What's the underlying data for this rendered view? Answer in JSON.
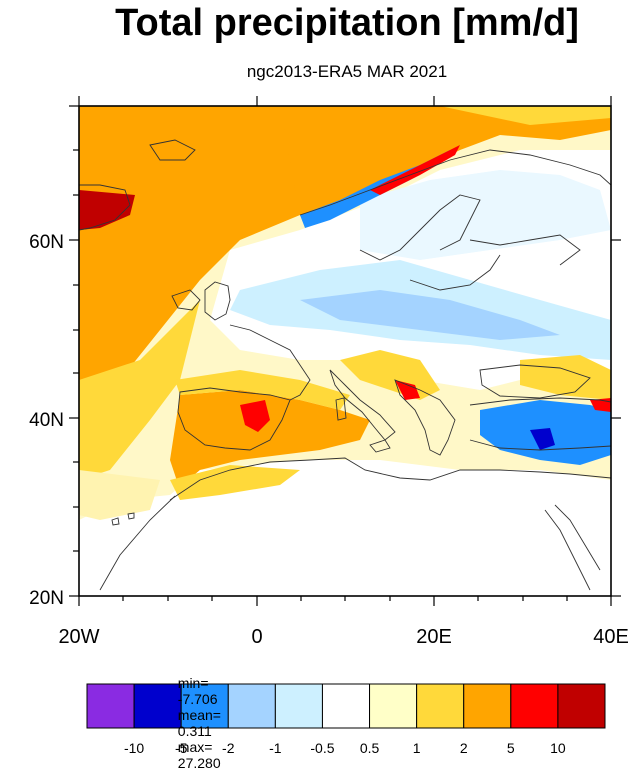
{
  "title": "Total precipitation [mm/d]",
  "subtitle": "ngc2013-ERA5 MAR 2021",
  "axes": {
    "lat_labels": [
      "60N",
      "40N",
      "20N"
    ],
    "lon_labels": [
      "20W",
      "0",
      "20E",
      "40E"
    ]
  },
  "stats": {
    "min_label": "min=",
    "min": "-7.706",
    "mean_label": "mean=",
    "mean": "0.311",
    "max_label": "max=",
    "max": "27.280"
  },
  "colorbar": {
    "colors": [
      "#8a2be2",
      "#0000cd",
      "#1e90ff",
      "#a4d3ff",
      "#cdf0ff",
      "#ffffff",
      "#ffffc8",
      "#ffd93a",
      "#ffa500",
      "#ff0000",
      "#c00000"
    ],
    "labels": [
      "-10",
      "-5",
      "-2",
      "-1",
      "-0.5",
      "0.5",
      "1",
      "2",
      "5",
      "10"
    ]
  },
  "map": {
    "background_color": "#ffd93a",
    "coastline_color": "#333333"
  }
}
